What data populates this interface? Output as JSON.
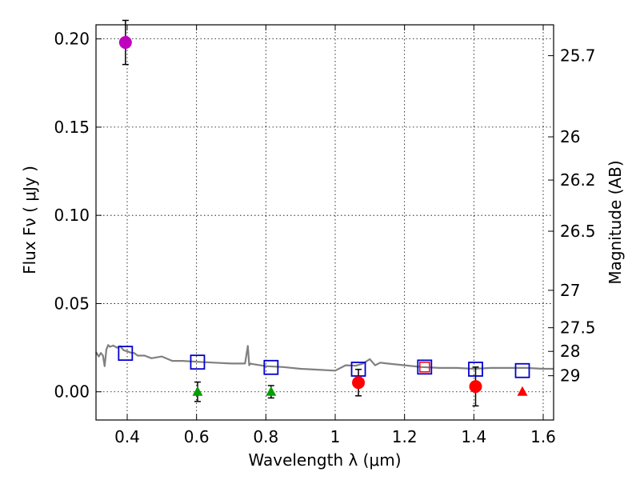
{
  "chart_data": {
    "type": "scatter",
    "xlabel": "Wavelength  λ (μm)",
    "ylabel": "Flux  Fν  ( μJy )",
    "ylabel_right": "Magnitude (AB)",
    "xlim": [
      0.31,
      1.63
    ],
    "ylim": [
      -0.016,
      0.208
    ],
    "grid": true,
    "x_ticks": [
      0.4,
      0.6,
      0.8,
      1.0,
      1.2,
      1.4,
      1.6
    ],
    "x_tick_labels": [
      "0.4",
      "0.6",
      "0.8",
      "1",
      "1.2",
      "1.4",
      "1.6"
    ],
    "y_ticks": [
      0.0,
      0.05,
      0.1,
      0.15,
      0.2
    ],
    "y_tick_labels": [
      "0.00",
      "0.05",
      "0.10",
      "0.15",
      "0.20"
    ],
    "magnitude_ticks": [
      {
        "flux": 0.1905,
        "label": "25.7"
      },
      {
        "flux": 0.1445,
        "label": "26"
      },
      {
        "flux": 0.12,
        "label": "26.2"
      },
      {
        "flux": 0.091,
        "label": "26.5"
      },
      {
        "flux": 0.0575,
        "label": "27"
      },
      {
        "flux": 0.0363,
        "label": "27.5"
      },
      {
        "flux": 0.0229,
        "label": "28"
      },
      {
        "flux": 0.0091,
        "label": "29"
      }
    ],
    "model_sed": {
      "name": "model SED",
      "color": "#808080",
      "x": [
        0.31,
        0.318,
        0.324,
        0.33,
        0.335,
        0.34,
        0.345,
        0.35,
        0.36,
        0.37,
        0.38,
        0.39,
        0.4,
        0.41,
        0.42,
        0.43,
        0.45,
        0.47,
        0.5,
        0.53,
        0.56,
        0.6,
        0.65,
        0.7,
        0.74,
        0.748,
        0.752,
        0.756,
        0.76,
        0.8,
        0.85,
        0.9,
        0.95,
        1.0,
        1.03,
        1.06,
        1.08,
        1.1,
        1.115,
        1.13,
        1.15,
        1.2,
        1.25,
        1.3,
        1.35,
        1.4,
        1.45,
        1.5,
        1.55,
        1.6,
        1.63
      ],
      "y": [
        0.0225,
        0.02,
        0.022,
        0.0205,
        0.0145,
        0.024,
        0.0265,
        0.0255,
        0.0262,
        0.025,
        0.0258,
        0.0235,
        0.023,
        0.0222,
        0.022,
        0.0205,
        0.0205,
        0.019,
        0.02,
        0.0175,
        0.0175,
        0.017,
        0.0165,
        0.016,
        0.016,
        0.026,
        0.015,
        0.016,
        0.0158,
        0.0145,
        0.014,
        0.013,
        0.0125,
        0.012,
        0.015,
        0.0148,
        0.016,
        0.0185,
        0.015,
        0.0165,
        0.016,
        0.015,
        0.014,
        0.0135,
        0.0135,
        0.013,
        0.0135,
        0.0135,
        0.0135,
        0.013,
        0.013
      ]
    },
    "model_points": {
      "name": "model photometry",
      "marker": "square",
      "points": [
        {
          "x": 0.395,
          "y": 0.0218,
          "color": "#0000cc"
        },
        {
          "x": 0.603,
          "y": 0.0168,
          "color": "#0000cc"
        },
        {
          "x": 0.815,
          "y": 0.0138,
          "color": "#0000cc"
        },
        {
          "x": 1.067,
          "y": 0.0128,
          "color": "#0000cc"
        },
        {
          "x": 1.258,
          "y": 0.014,
          "color": "#0000cc"
        },
        {
          "x": 1.405,
          "y": 0.0128,
          "color": "#0000cc"
        },
        {
          "x": 1.54,
          "y": 0.012,
          "color": "#0000cc"
        }
      ]
    },
    "observed": [
      {
        "x": 0.395,
        "y": 0.198,
        "err": 0.0125,
        "marker": "circle",
        "color": "#bf00bf"
      },
      {
        "x": 0.603,
        "y": 0.0,
        "err": 0.0055,
        "marker": "triangle",
        "color": "#00a000"
      },
      {
        "x": 0.815,
        "y": 0.0,
        "err": 0.0035,
        "marker": "triangle",
        "color": "#00a000"
      },
      {
        "x": 1.067,
        "y": 0.0052,
        "err": 0.0075,
        "marker": "circle",
        "color": "#ff0000"
      },
      {
        "x": 1.258,
        "y": 0.014,
        "err": 0.0,
        "marker": "square",
        "color": "#ff0000"
      },
      {
        "x": 1.405,
        "y": 0.003,
        "err": 0.011,
        "marker": "circle",
        "color": "#ff0000"
      },
      {
        "x": 1.54,
        "y": 0.0,
        "err": 0.0,
        "marker": "triangle",
        "color": "#ff0000"
      }
    ]
  }
}
